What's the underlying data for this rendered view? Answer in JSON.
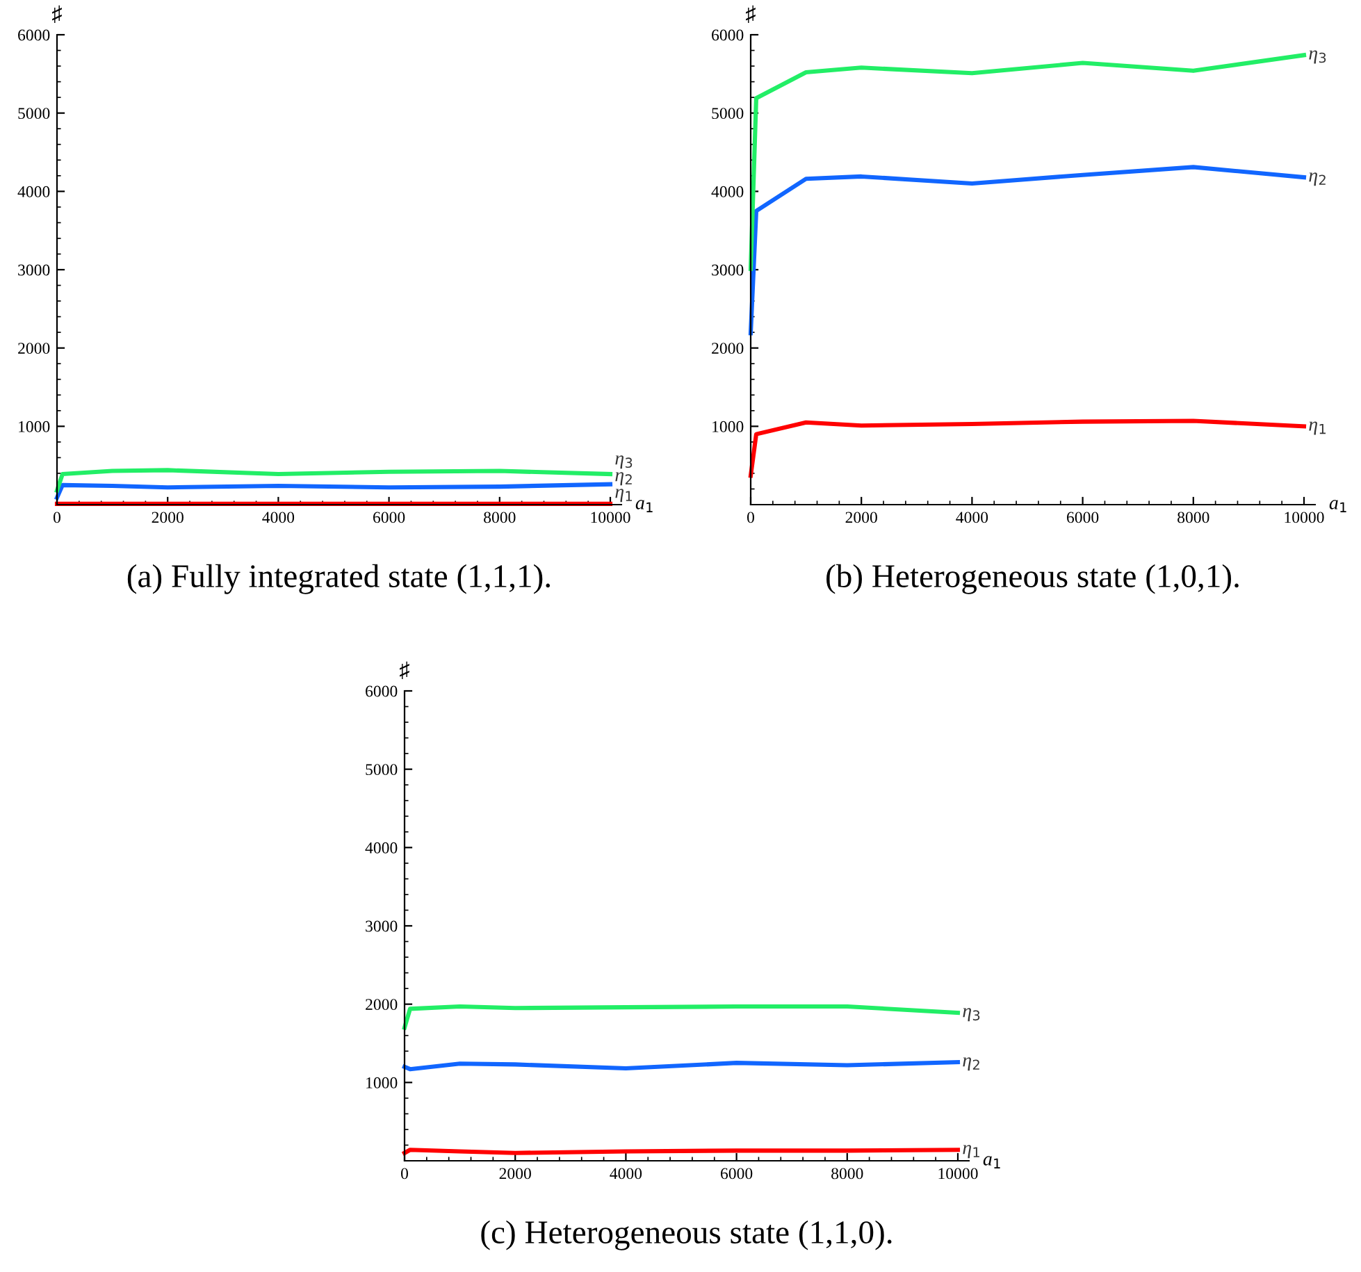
{
  "chart_data": [
    {
      "type": "line",
      "title": "(a) Fully integrated state (1,1,1).",
      "xlabel": "a$_{1}$",
      "ylabel": "♯",
      "x": [
        0,
        100,
        1000,
        2000,
        4000,
        6000,
        8000,
        10000
      ],
      "xlim": [
        0,
        10200
      ],
      "ylim": [
        0,
        6000
      ],
      "xticks": [
        0,
        2000,
        4000,
        6000,
        8000,
        10000
      ],
      "yticks": [
        1000,
        2000,
        3000,
        4000,
        5000,
        6000
      ],
      "grid": false,
      "legend": false,
      "marker": "none",
      "line_style": "solid",
      "series": [
        {
          "name": "η$_{1}$",
          "color": "#ff0000",
          "values": [
            10,
            10,
            10,
            10,
            10,
            10,
            10,
            10
          ]
        },
        {
          "name": "η$_{2}$",
          "color": "#1166ff",
          "values": [
            90,
            250,
            240,
            220,
            240,
            220,
            230,
            260
          ]
        },
        {
          "name": "η$_{3}$",
          "color": "#22ee66",
          "values": [
            180,
            390,
            430,
            440,
            390,
            420,
            430,
            390
          ]
        }
      ]
    },
    {
      "type": "line",
      "title": "(b) Heterogeneous state (1,0,1).",
      "xlabel": "a$_{1}$",
      "ylabel": "♯",
      "x": [
        0,
        100,
        1000,
        2000,
        4000,
        6000,
        8000,
        10000
      ],
      "xlim": [
        0,
        10200
      ],
      "ylim": [
        0,
        6000
      ],
      "xticks": [
        0,
        2000,
        4000,
        6000,
        8000,
        10000
      ],
      "yticks": [
        1000,
        2000,
        3000,
        4000,
        5000,
        6000
      ],
      "grid": false,
      "legend": false,
      "marker": "none",
      "line_style": "solid",
      "series": [
        {
          "name": "η$_{1}$",
          "color": "#ff0000",
          "values": [
            370,
            900,
            1050,
            1010,
            1030,
            1060,
            1070,
            1000
          ]
        },
        {
          "name": "η$_{2}$",
          "color": "#1166ff",
          "values": [
            2190,
            3750,
            4160,
            4190,
            4100,
            4210,
            4310,
            4180
          ]
        },
        {
          "name": "η$_{3}$",
          "color": "#22ee66",
          "values": [
            3010,
            5190,
            5520,
            5580,
            5510,
            5640,
            5540,
            5740
          ]
        }
      ]
    },
    {
      "type": "line",
      "title": "(c) Heterogeneous state (1,1,0).",
      "xlabel": "a$_{1}$",
      "ylabel": "♯",
      "x": [
        0,
        100,
        1000,
        2000,
        4000,
        6000,
        8000,
        10000
      ],
      "xlim": [
        0,
        10200
      ],
      "ylim": [
        0,
        6000
      ],
      "xticks": [
        0,
        2000,
        4000,
        6000,
        8000,
        10000
      ],
      "yticks": [
        1000,
        2000,
        3000,
        4000,
        5000,
        6000
      ],
      "grid": false,
      "legend": false,
      "marker": "none",
      "line_style": "solid",
      "series": [
        {
          "name": "η$_{1}$",
          "color": "#ff0000",
          "values": [
            100,
            140,
            120,
            100,
            120,
            130,
            130,
            140
          ]
        },
        {
          "name": "η$_{2}$",
          "color": "#1166ff",
          "values": [
            1200,
            1170,
            1240,
            1230,
            1180,
            1250,
            1220,
            1260
          ]
        },
        {
          "name": "η$_{3}$",
          "color": "#22ee66",
          "values": [
            1700,
            1940,
            1970,
            1950,
            1960,
            1970,
            1970,
            1890
          ]
        }
      ]
    }
  ]
}
